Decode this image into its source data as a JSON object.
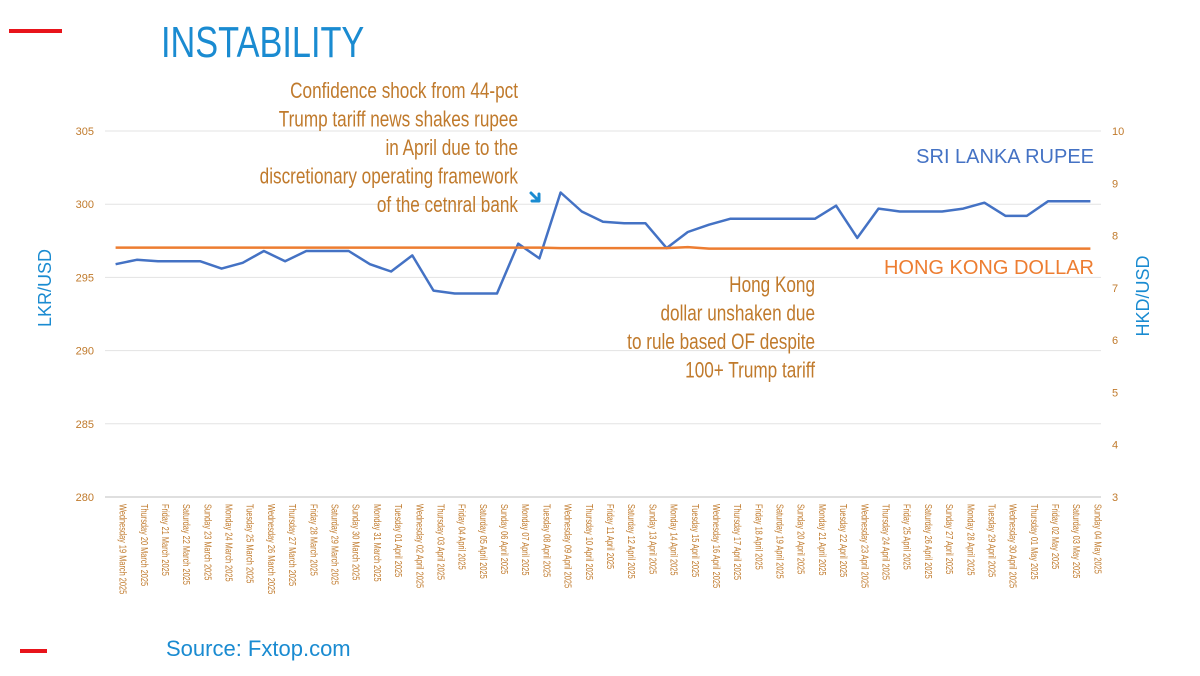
{
  "header": {
    "title": "INSTABILITY"
  },
  "source": "Source: Fxtop.com",
  "colors": {
    "lkr": "#4472c4",
    "hkd": "#ed7d31",
    "title": "#1a8bd1",
    "annotation": "#c07a2c",
    "accent_bar": "#e8141b"
  },
  "chart_data": {
    "type": "line",
    "x": [
      "Wednesday 19 March 2025",
      "Thursday 20 March 2025",
      "Friday 21 March 2025",
      "Saturday 22 March 2025",
      "Sunday 23 March 2025",
      "Monday 24 March 2025",
      "Tuesday 25 March 2025",
      "Wednesday 26 March 2025",
      "Thursday 27 March 2025",
      "Friday 28 March 2025",
      "Saturday 29 March 2025",
      "Sunday 30 March 2025",
      "Monday 31 March 2025",
      "Tuesday 01 April 2025",
      "Wednesday 02 April 2025",
      "Thursday 03 April 2025",
      "Friday 04 April 2025",
      "Saturday 05 April 2025",
      "Sunday 06 April 2025",
      "Monday 07 April 2025",
      "Tuesday 08 April 2025",
      "Wednesday 09 April 2025",
      "Thursday 10 April 2025",
      "Friday 11 April 2025",
      "Saturday 12 April 2025",
      "Sunday 13 April 2025",
      "Monday 14 April 2025",
      "Tuesday 15 April 2025",
      "Wednesday 16 April 2025",
      "Thursday 17 April 2025",
      "Friday 18 April 2025",
      "Saturday 19 April 2025",
      "Sunday 20 April 2025",
      "Monday 21 April 2025",
      "Tuesday 22 April 2025",
      "Wednesday 23 April 2025",
      "Thursday 24 April 2025",
      "Friday 25 April 2025",
      "Saturday 26 April 2025",
      "Sunday 27 April 2025",
      "Monday 28 April 2025",
      "Tuesday 29 April 2025",
      "Wednesday 30 April 2025",
      "Thursday 01 May 2025",
      "Friday 02 May 2025",
      "Saturday 03 May 2025",
      "Sunday 04 May 2025"
    ],
    "ylabel": "LKR/USD",
    "y2label": "HKD/USD",
    "ylim": [
      280,
      305
    ],
    "yticks": [
      280,
      285,
      290,
      295,
      300,
      305
    ],
    "y2lim": [
      3,
      10
    ],
    "y2ticks": [
      3,
      4,
      5,
      6,
      7,
      8,
      9,
      10
    ],
    "grid": true,
    "series": [
      {
        "name": "SRI LANKA RUPEE",
        "axis": "left",
        "color": "#4472c4",
        "values": [
          295.9,
          296.2,
          296.1,
          296.1,
          296.1,
          295.6,
          296.0,
          296.8,
          296.1,
          296.8,
          296.8,
          296.8,
          295.9,
          295.4,
          296.5,
          294.1,
          293.9,
          293.9,
          293.9,
          297.3,
          296.3,
          300.8,
          299.5,
          298.8,
          298.7,
          298.7,
          297.0,
          298.1,
          298.6,
          299.0,
          299.0,
          299.0,
          299.0,
          299.0,
          299.9,
          297.7,
          299.7,
          299.5,
          299.5,
          299.5,
          299.7,
          300.1,
          299.2,
          299.2,
          300.2,
          300.2,
          300.2
        ]
      },
      {
        "name": "HONG KONG DOLLAR",
        "axis": "right",
        "color": "#ed7d31",
        "values": [
          7.77,
          7.77,
          7.77,
          7.77,
          7.77,
          7.77,
          7.77,
          7.77,
          7.77,
          7.77,
          7.77,
          7.77,
          7.77,
          7.77,
          7.77,
          7.77,
          7.77,
          7.77,
          7.77,
          7.77,
          7.77,
          7.76,
          7.76,
          7.76,
          7.76,
          7.76,
          7.76,
          7.78,
          7.75,
          7.75,
          7.75,
          7.75,
          7.75,
          7.75,
          7.75,
          7.75,
          7.75,
          7.75,
          7.75,
          7.75,
          7.75,
          7.75,
          7.75,
          7.75,
          7.75,
          7.75,
          7.75
        ]
      }
    ],
    "annotations": [
      {
        "lines": [
          "Confidence shock from 44-pct",
          "Trump tariff news shakes rupee",
          "in April due to the",
          "discretionary operating framework",
          "of the cetnral bank"
        ]
      },
      {
        "lines": [
          "Hong Kong",
          "dollar unshaken due",
          "to rule based OF despite",
          "100+ Trump tariff"
        ]
      }
    ]
  }
}
